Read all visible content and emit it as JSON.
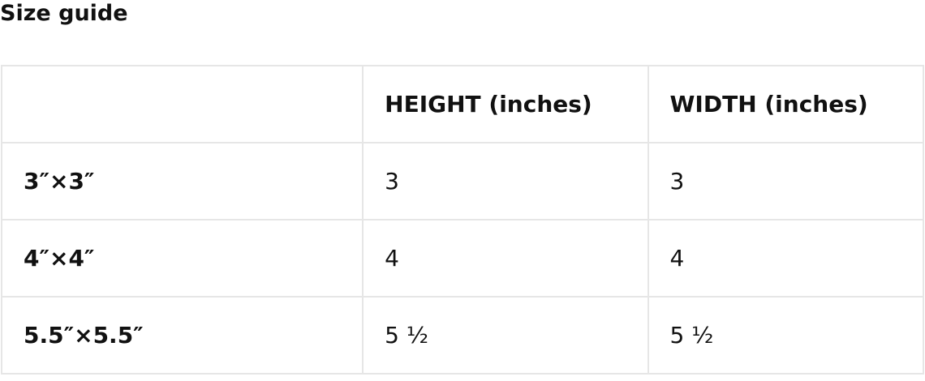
{
  "title": "Size guide",
  "table": {
    "headers": [
      "",
      "HEIGHT (inches)",
      "WIDTH (inches)"
    ],
    "rows": [
      {
        "size": "3″×3″",
        "height": "3",
        "width": "3"
      },
      {
        "size": "4″×4″",
        "height": "4",
        "width": "4"
      },
      {
        "size": "5.5″×5.5″",
        "height": "5 ½",
        "width": "5 ½"
      }
    ]
  },
  "colors": {
    "border": "#e6e6e6",
    "text": "#111111"
  }
}
